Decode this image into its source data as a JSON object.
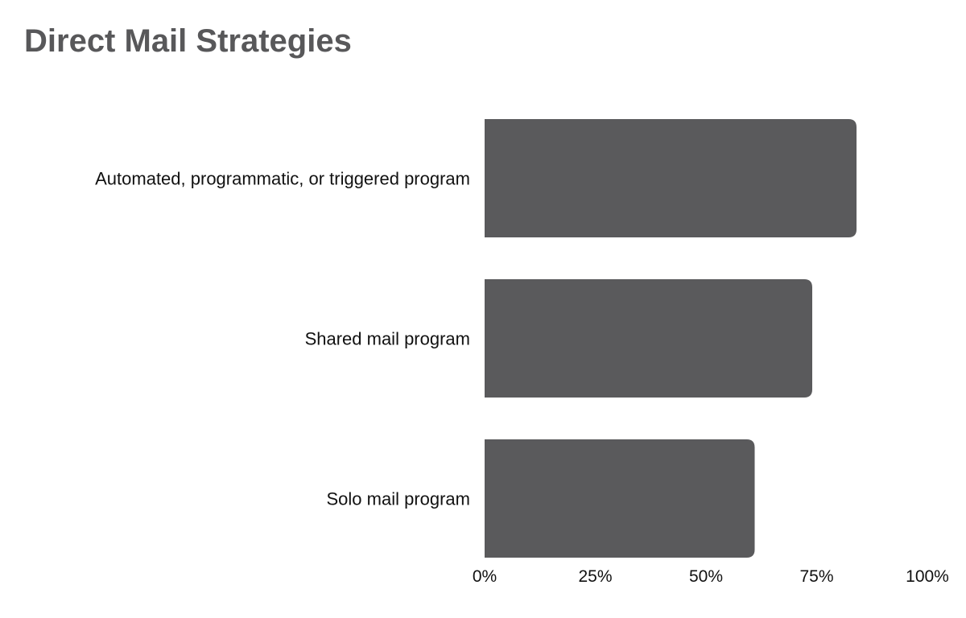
{
  "chart_data": {
    "type": "bar",
    "orientation": "horizontal",
    "title": "Direct Mail Strategies",
    "xlabel": "",
    "ylabel": "",
    "categories": [
      "Automated, programmatic, or triggered program",
      "Shared mail program",
      "Solo mail program"
    ],
    "values": [
      84,
      74,
      61
    ],
    "value_unit": "%",
    "xlim": [
      0,
      100
    ],
    "x_ticks": [
      "0%",
      "25%",
      "50%",
      "75%",
      "100%"
    ],
    "grid": false,
    "legend": "none",
    "bar_color": "#5a5a5c",
    "title_color": "#58585a"
  }
}
